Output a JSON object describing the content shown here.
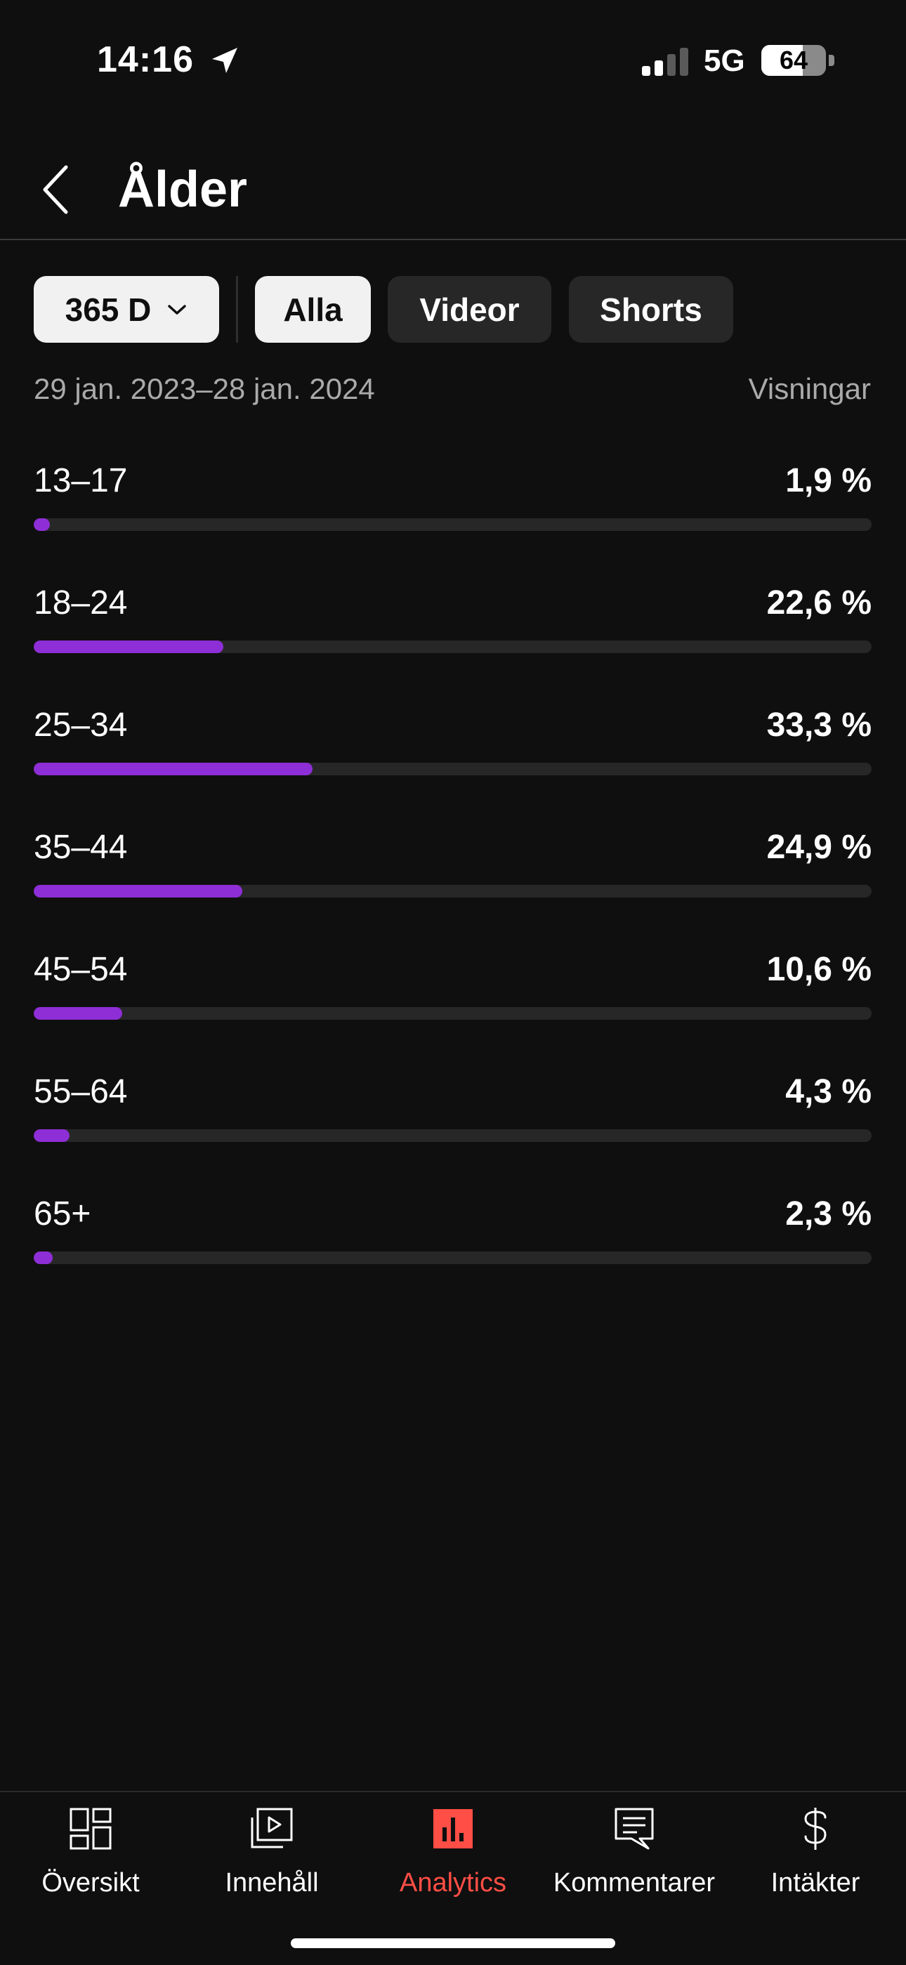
{
  "status_bar": {
    "time": "14:16",
    "network": "5G",
    "battery": "64",
    "battery_level": 0.64
  },
  "header": {
    "title": "Ålder"
  },
  "filters": {
    "period": "365 D",
    "types": [
      "Alla",
      "Videor",
      "Shorts"
    ],
    "selected_type": "Alla"
  },
  "date_range": "29 jan. 2023–28 jan. 2024",
  "metric_label": "Visningar",
  "age_groups": [
    {
      "label": "13–17",
      "value_text": "1,9 %",
      "percent": 1.9
    },
    {
      "label": "18–24",
      "value_text": "22,6 %",
      "percent": 22.6
    },
    {
      "label": "25–34",
      "value_text": "33,3 %",
      "percent": 33.3
    },
    {
      "label": "35–44",
      "value_text": "24,9 %",
      "percent": 24.9
    },
    {
      "label": "45–54",
      "value_text": "10,6 %",
      "percent": 10.6
    },
    {
      "label": "55–64",
      "value_text": "4,3 %",
      "percent": 4.3
    },
    {
      "label": "65+",
      "value_text": "2,3 %",
      "percent": 2.3
    }
  ],
  "nav": {
    "items": [
      {
        "label": "Översikt",
        "icon": "dashboard-icon"
      },
      {
        "label": "Innehåll",
        "icon": "video-library-icon"
      },
      {
        "label": "Analytics",
        "icon": "analytics-icon"
      },
      {
        "label": "Kommentarer",
        "icon": "comment-icon"
      },
      {
        "label": "Intäkter",
        "icon": "dollar-icon"
      }
    ],
    "active": "Analytics"
  },
  "colors": {
    "accent": "#ff4e45",
    "bar_fill": "#8e2ed6",
    "track": "#272727",
    "background": "#0f0f0f"
  }
}
